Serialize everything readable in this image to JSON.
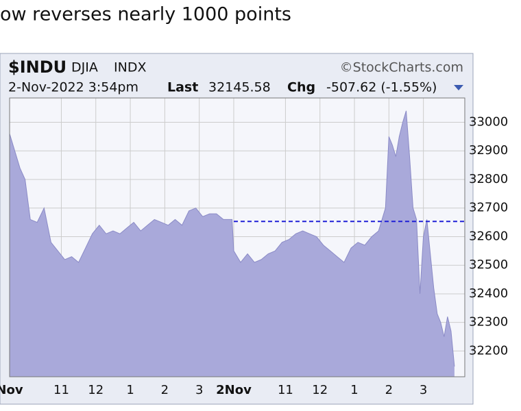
{
  "heading": "ow reverses nearly 1000 points",
  "chart_data": {
    "type": "area",
    "symbol": "$INDU",
    "name": "DJIA",
    "exchange": "INDX",
    "source": "©StockCharts.com",
    "date": "2-Nov-2022 3:54pm",
    "last_label": "Last",
    "last": 32145.58,
    "chg_label": "Chg",
    "chg": "-507.62 (-1.55%)",
    "xlim": [
      0,
      13.2
    ],
    "ylim": [
      32110,
      33085
    ],
    "xticks": [
      {
        "value": 0,
        "label": "Nov"
      },
      {
        "value": 1.5,
        "label": "11"
      },
      {
        "value": 2.5,
        "label": "12"
      },
      {
        "value": 3.5,
        "label": "1"
      },
      {
        "value": 4.5,
        "label": "2"
      },
      {
        "value": 5.5,
        "label": "3"
      },
      {
        "value": 6.5,
        "label": "2Nov"
      },
      {
        "value": 8,
        "label": "11"
      },
      {
        "value": 9,
        "label": "12"
      },
      {
        "value": 10,
        "label": "1"
      },
      {
        "value": 11,
        "label": "2"
      },
      {
        "value": 12,
        "label": "3"
      }
    ],
    "yticks": [
      32200,
      32300,
      32400,
      32500,
      32600,
      32700,
      32800,
      32900,
      33000
    ],
    "grid": true,
    "reference_line": {
      "value": 32653.2,
      "x_start": 6.5,
      "color": "#1f1fd6"
    },
    "series": [
      {
        "color": "#a9a9da",
        "line_color": "#8a8ac6",
        "x": [
          0,
          0.15,
          0.3,
          0.45,
          0.6,
          0.8,
          1.0,
          1.2,
          1.4,
          1.6,
          1.8,
          2.0,
          2.2,
          2.4,
          2.6,
          2.8,
          3.0,
          3.2,
          3.4,
          3.6,
          3.8,
          4.0,
          4.2,
          4.4,
          4.6,
          4.8,
          5.0,
          5.2,
          5.4,
          5.6,
          5.8,
          6.0,
          6.2,
          6.45,
          6.5,
          6.7,
          6.9,
          7.1,
          7.3,
          7.5,
          7.7,
          7.9,
          8.1,
          8.3,
          8.5,
          8.7,
          8.9,
          9.1,
          9.3,
          9.5,
          9.7,
          9.9,
          10.1,
          10.3,
          10.5,
          10.7,
          10.9,
          11.0,
          11.1,
          11.2,
          11.3,
          11.4,
          11.5,
          11.6,
          11.7,
          11.8,
          11.9,
          12.0,
          12.1,
          12.2,
          12.3,
          12.4,
          12.5,
          12.6,
          12.7,
          12.8,
          12.9
        ],
        "values": [
          32960,
          32900,
          32840,
          32800,
          32660,
          32650,
          32700,
          32580,
          32550,
          32520,
          32530,
          32510,
          32560,
          32610,
          32640,
          32610,
          32620,
          32610,
          32630,
          32650,
          32620,
          32640,
          32660,
          32650,
          32640,
          32660,
          32640,
          32690,
          32700,
          32670,
          32680,
          32680,
          32660,
          32660,
          32550,
          32510,
          32540,
          32510,
          32520,
          32540,
          32550,
          32580,
          32590,
          32610,
          32620,
          32610,
          32600,
          32570,
          32550,
          32530,
          32510,
          32560,
          32580,
          32570,
          32600,
          32620,
          32700,
          32950,
          32920,
          32880,
          32950,
          33000,
          33040,
          32880,
          32700,
          32660,
          32400,
          32600,
          32660,
          32540,
          32420,
          32330,
          32300,
          32250,
          32320,
          32270,
          32146
        ]
      }
    ]
  }
}
